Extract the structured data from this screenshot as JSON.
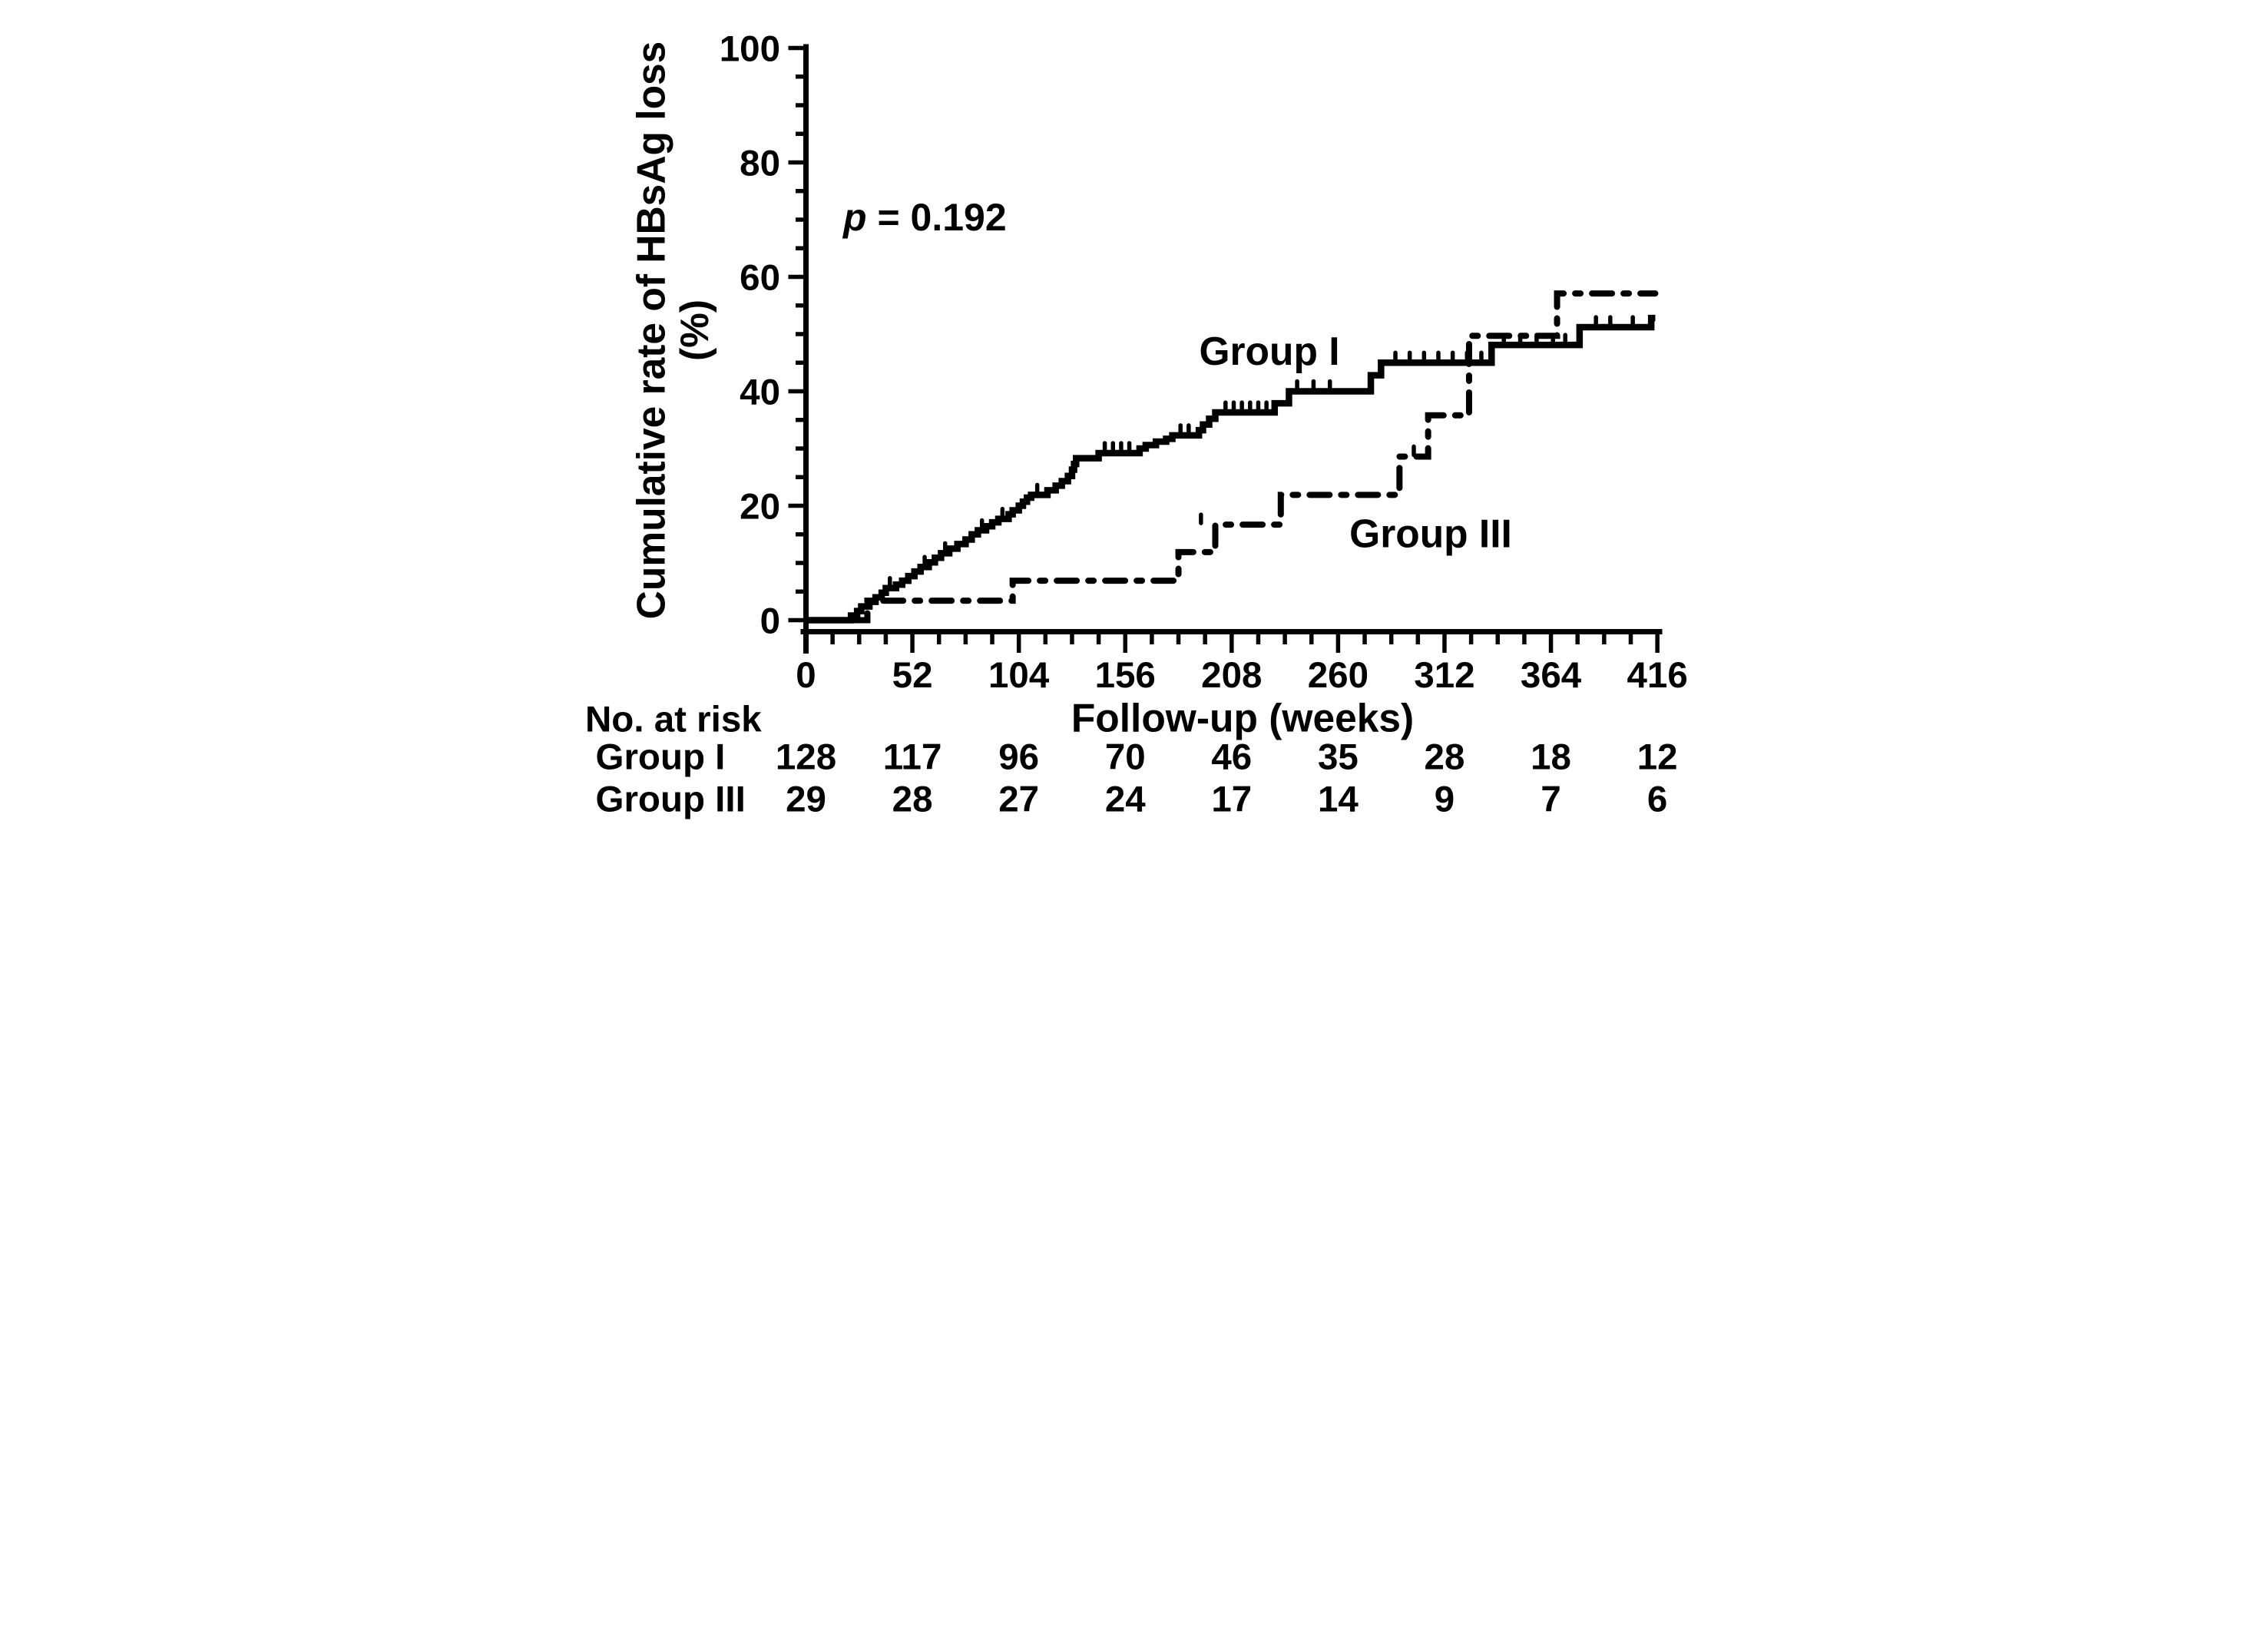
{
  "figure": {
    "p_symbol": "p",
    "p_rest": " = 0.192",
    "y_axis_title_line1": "Cumulative rate of HBsAg loss",
    "y_axis_title_line2": "(%)",
    "x_axis_title": "Follow-up (weeks)"
  },
  "risk_table": {
    "header": "No. at risk",
    "rows": [
      {
        "label": "Group I",
        "values": [
          "128",
          "117",
          "96",
          "70",
          "46",
          "35",
          "28",
          "18",
          "12"
        ]
      },
      {
        "label": "Group III",
        "values": [
          "29",
          "28",
          "27",
          "24",
          "17",
          "14",
          "9",
          "7",
          "6"
        ]
      }
    ]
  },
  "chart_data": {
    "type": "line",
    "subtype": "kaplan-meier-step",
    "title": "",
    "xlabel": "Follow-up (weeks)",
    "ylabel": "Cumulative rate of HBsAg loss (%)",
    "xlim": [
      0,
      416
    ],
    "ylim": [
      0,
      100
    ],
    "x_ticks": [
      0,
      52,
      104,
      156,
      208,
      260,
      312,
      364,
      416
    ],
    "x_minor_tick_step": 13,
    "y_ticks": [
      0,
      20,
      40,
      60,
      80,
      100
    ],
    "y_minor_tick_step": 5,
    "grid": false,
    "legend_position": "inline-labels",
    "line_color": "#000000",
    "annotations": [
      {
        "text": "p = 0.192",
        "x_weeks": 52,
        "y_percent": 70.5
      }
    ],
    "series": [
      {
        "name": "Group I",
        "line_style": "solid",
        "color": "#000000",
        "label_position": {
          "x_weeks": 224,
          "y_percent": 47
        },
        "end_week": 415,
        "steps": [
          [
            22,
            0.8
          ],
          [
            25,
            1.6
          ],
          [
            27,
            2.4
          ],
          [
            31,
            3.2
          ],
          [
            34,
            4.0
          ],
          [
            37,
            4.8
          ],
          [
            39,
            5.6
          ],
          [
            44,
            6.2
          ],
          [
            47,
            6.9
          ],
          [
            50,
            7.7
          ],
          [
            53,
            8.5
          ],
          [
            56,
            9.3
          ],
          [
            60,
            10.1
          ],
          [
            63,
            10.9
          ],
          [
            66,
            11.7
          ],
          [
            70,
            12.5
          ],
          [
            74,
            13.3
          ],
          [
            78,
            14.1
          ],
          [
            81,
            15.0
          ],
          [
            84,
            15.7
          ],
          [
            88,
            16.4
          ],
          [
            91,
            17.1
          ],
          [
            94,
            17.7
          ],
          [
            99,
            18.5
          ],
          [
            101,
            19.2
          ],
          [
            104,
            20.0
          ],
          [
            106,
            20.7
          ],
          [
            108,
            21.4
          ],
          [
            110,
            21.9
          ],
          [
            118,
            22.7
          ],
          [
            122,
            23.5
          ],
          [
            125,
            24.3
          ],
          [
            128,
            25.2
          ],
          [
            130,
            26.3
          ],
          [
            131,
            27.3
          ],
          [
            132,
            28.3
          ],
          [
            143,
            29.2
          ],
          [
            163,
            30.0
          ],
          [
            166,
            30.6
          ],
          [
            171,
            31.2
          ],
          [
            176,
            31.7
          ],
          [
            179,
            32.3
          ],
          [
            192,
            33.2
          ],
          [
            194,
            34.2
          ],
          [
            197,
            35.2
          ],
          [
            200,
            36.3
          ],
          [
            229,
            37.9
          ],
          [
            236,
            40.0
          ],
          [
            276,
            42.8
          ],
          [
            281,
            45.0
          ],
          [
            335,
            48.1
          ],
          [
            378,
            51.2
          ],
          [
            413,
            52.8
          ]
        ],
        "censor_ticks": [
          [
            41,
            5.6
          ],
          [
            58,
            9.3
          ],
          [
            68,
            11.7
          ],
          [
            86,
            15.7
          ],
          [
            96,
            17.7
          ],
          [
            113,
            21.9
          ],
          [
            146,
            29.2
          ],
          [
            150,
            29.2
          ],
          [
            154,
            29.2
          ],
          [
            158,
            29.2
          ],
          [
            183,
            32.3
          ],
          [
            187,
            32.3
          ],
          [
            205,
            36.3
          ],
          [
            209,
            36.3
          ],
          [
            213,
            36.3
          ],
          [
            217,
            36.3
          ],
          [
            221,
            36.3
          ],
          [
            225,
            36.3
          ],
          [
            240,
            40.0
          ],
          [
            248,
            40.0
          ],
          [
            256,
            40.0
          ],
          [
            288,
            45.0
          ],
          [
            295,
            45.0
          ],
          [
            302,
            45.0
          ],
          [
            309,
            45.0
          ],
          [
            316,
            45.0
          ],
          [
            323,
            45.0
          ],
          [
            330,
            45.0
          ],
          [
            341,
            48.1
          ],
          [
            349,
            48.1
          ],
          [
            357,
            48.1
          ],
          [
            365,
            48.1
          ],
          [
            371,
            48.1
          ],
          [
            386,
            51.2
          ],
          [
            393,
            51.2
          ],
          [
            404,
            51.2
          ]
        ]
      },
      {
        "name": "Group III",
        "line_style": "dash-dot",
        "color": "#000000",
        "label_position": {
          "x_weeks": 300,
          "y_percent": 15
        },
        "end_week": 415,
        "steps": [
          [
            30,
            3.4
          ],
          [
            101,
            6.9
          ],
          [
            182,
            11.9
          ],
          [
            200,
            16.7
          ],
          [
            232,
            21.9
          ],
          [
            290,
            28.6
          ],
          [
            304,
            35.8
          ],
          [
            324,
            49.7
          ],
          [
            367,
            57.1
          ]
        ],
        "censor_ticks": [
          [
            193,
            16.7
          ],
          [
            297,
            28.6
          ]
        ]
      }
    ],
    "number_at_risk": {
      "header": "No. at risk",
      "timepoints_weeks": [
        0,
        52,
        104,
        156,
        208,
        260,
        312,
        364,
        416
      ],
      "groups": [
        {
          "name": "Group I",
          "counts": [
            128,
            117,
            96,
            70,
            46,
            35,
            28,
            18,
            12
          ]
        },
        {
          "name": "Group III",
          "counts": [
            29,
            28,
            27,
            24,
            17,
            14,
            9,
            7,
            6
          ]
        }
      ]
    }
  }
}
